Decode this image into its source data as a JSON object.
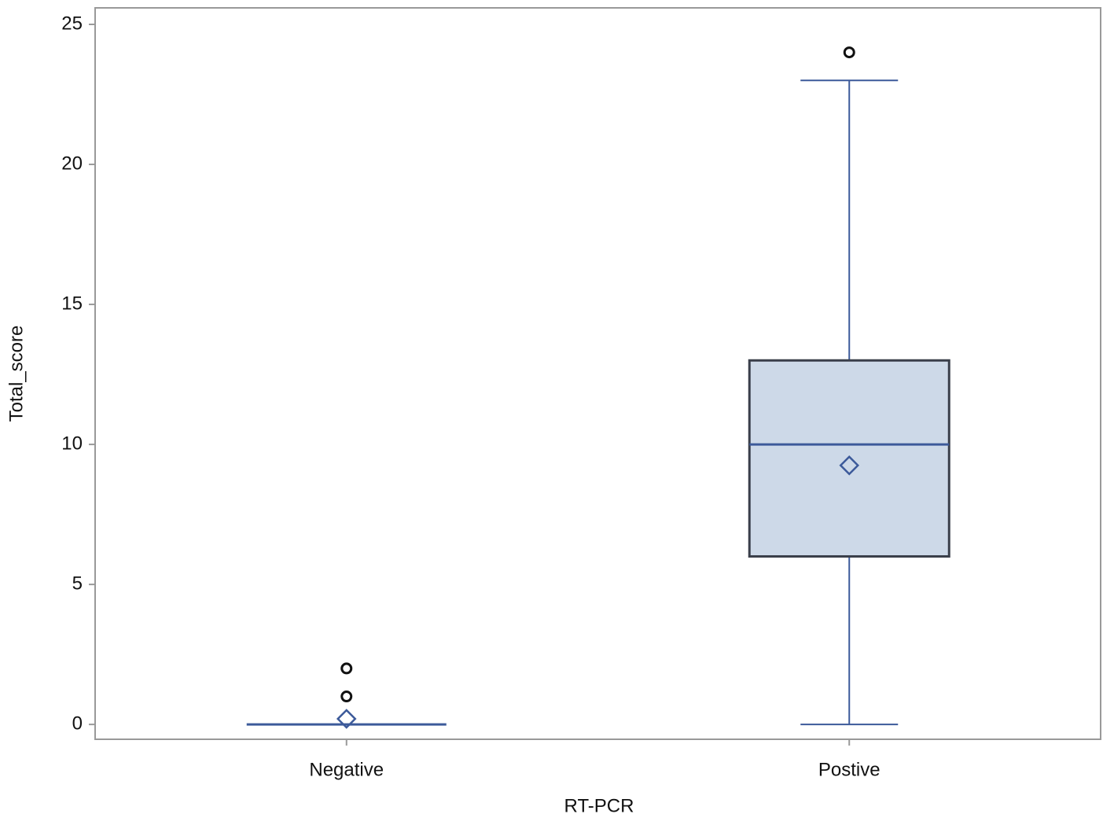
{
  "chart_data": {
    "type": "box",
    "x_label": "RT-PCR",
    "y_label": "Total_score",
    "categories": [
      "Negative",
      "Postive"
    ],
    "min": [
      0,
      0
    ],
    "q1": [
      0,
      6
    ],
    "median": [
      0,
      10
    ],
    "q3": [
      0,
      13
    ],
    "max": [
      0,
      23
    ],
    "mean": [
      0.2,
      9.25
    ],
    "outliers": [
      [
        1,
        2
      ],
      [
        24
      ]
    ],
    "box_color": "#cdd9e8",
    "box_edge": "#3a3f4a",
    "line_color": "#3c5a9a",
    "outlier_color": "#111111",
    "ylim": [
      -0.53,
      25.59
    ],
    "yticks": [
      0,
      5,
      10,
      15,
      20,
      25
    ]
  }
}
